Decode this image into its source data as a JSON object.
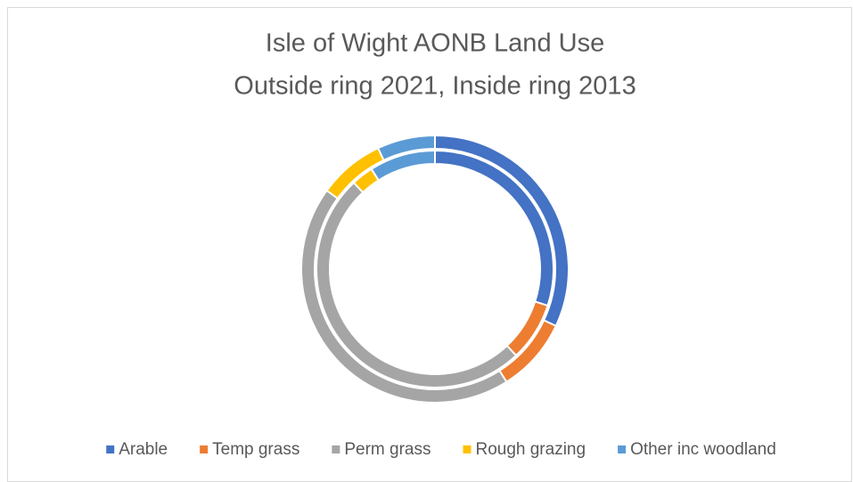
{
  "chart_data": {
    "type": "doughnut",
    "title": [
      "Isle of Wight AONB Land Use",
      "Outside ring 2021, Inside ring 2013"
    ],
    "categories": [
      "Arable",
      "Temp grass",
      "Perm grass",
      "Rough grazing",
      "Other inc woodland"
    ],
    "colors": [
      "#4472c4",
      "#ed7d31",
      "#a5a5a5",
      "#ffc000",
      "#5b9bd5"
    ],
    "series": [
      {
        "values": [
          32,
          9,
          44,
          8,
          7
        ]
      },
      {
        "values": [
          30,
          8,
          50,
          3,
          9
        ]
      }
    ],
    "legend": "bottom"
  }
}
